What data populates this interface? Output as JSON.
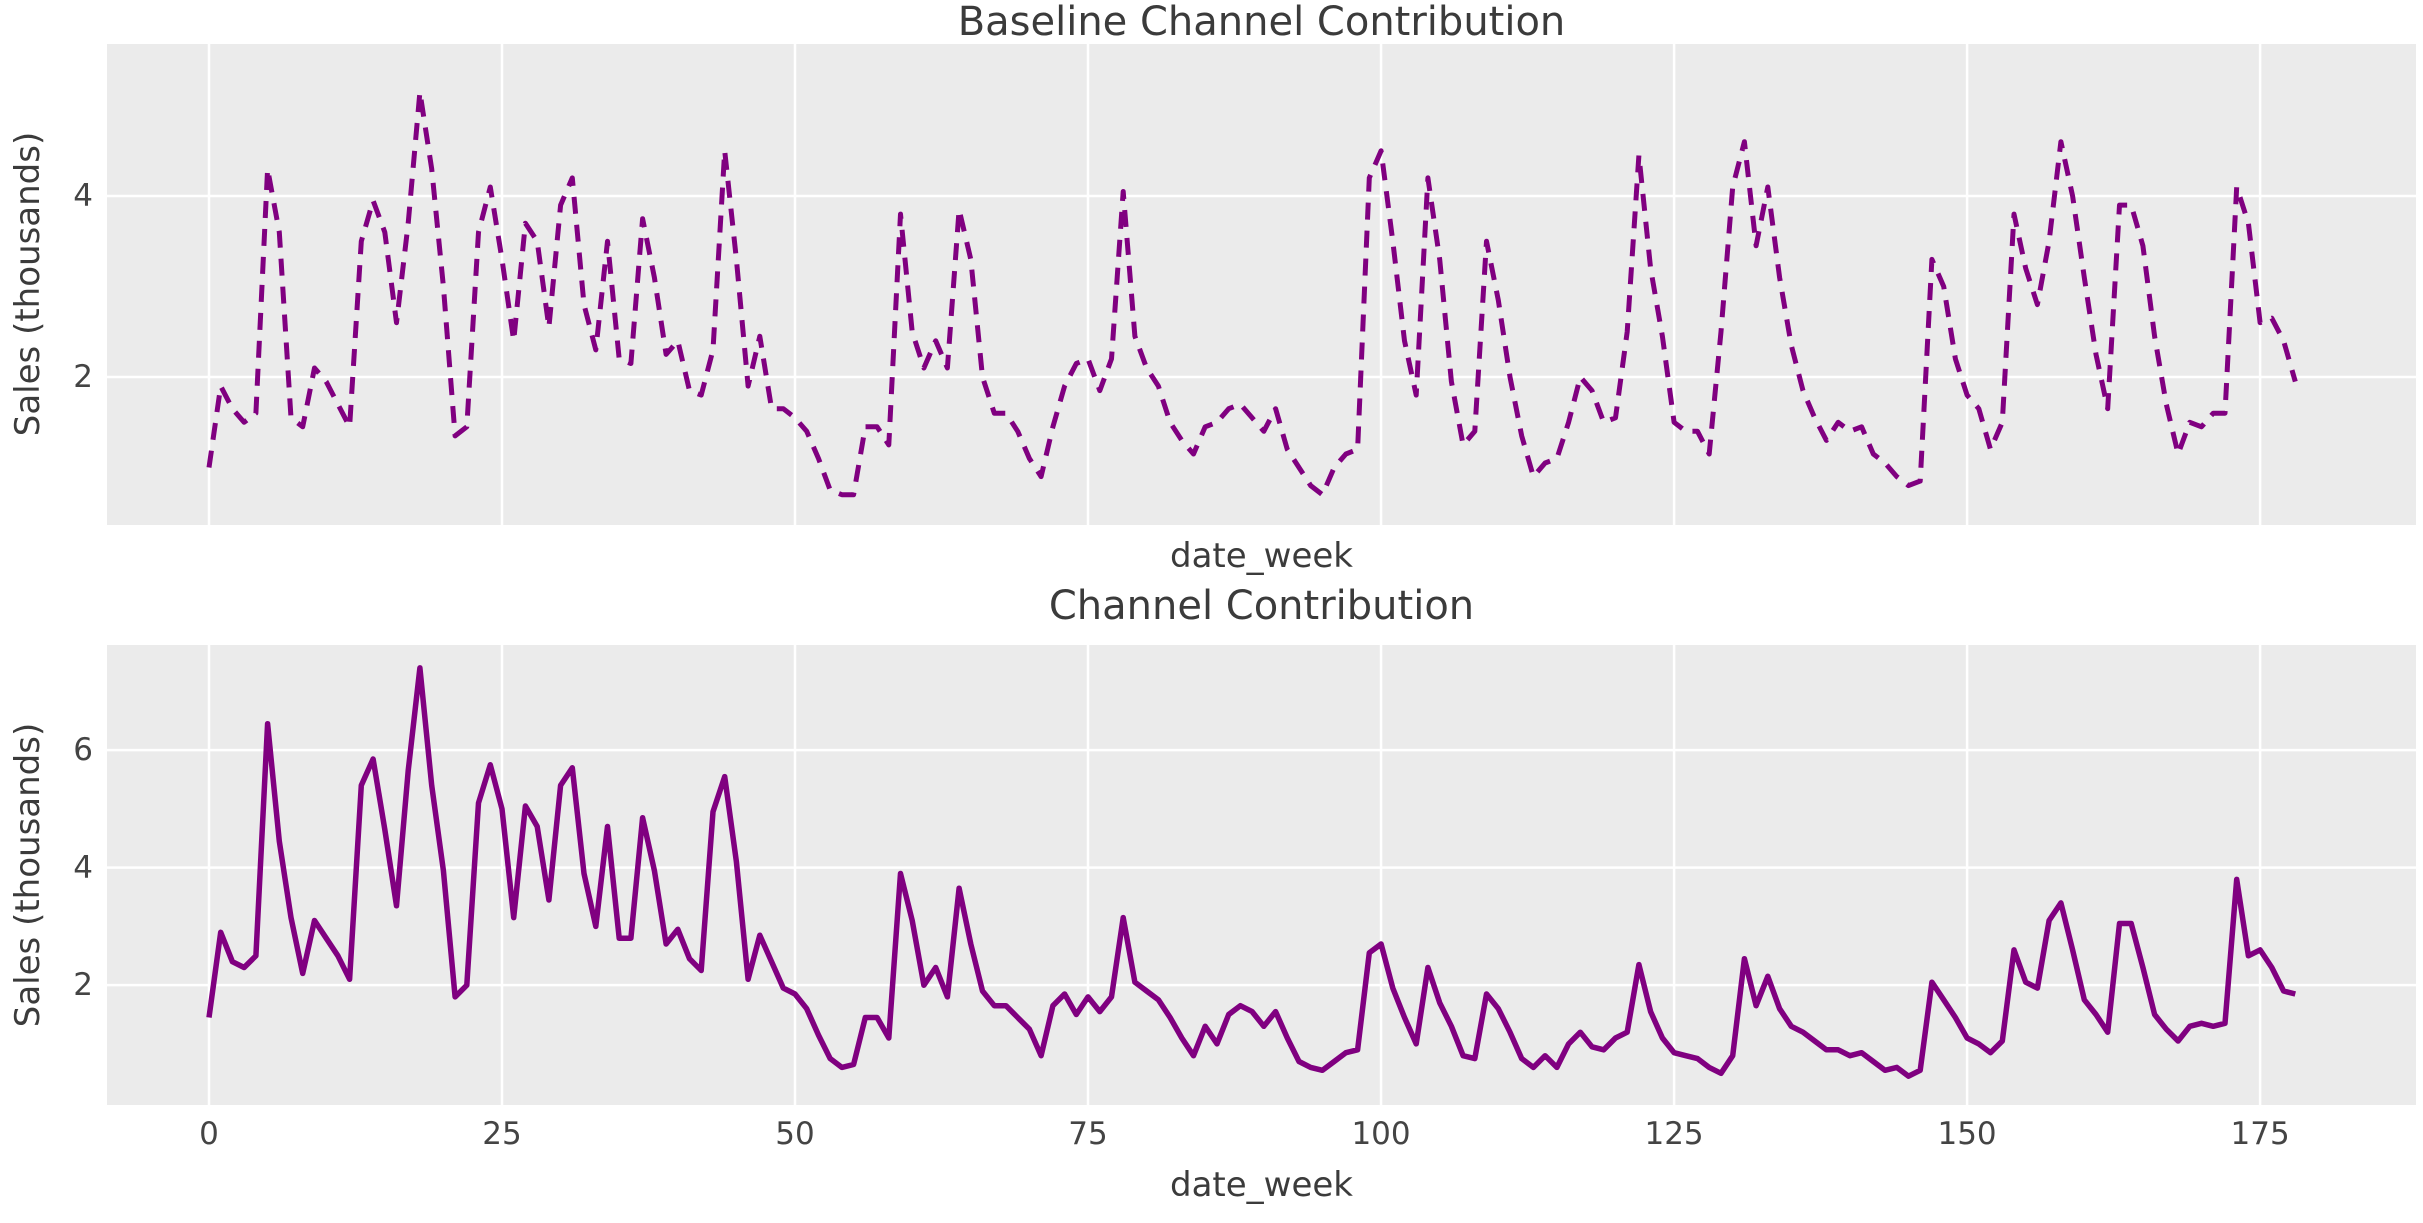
{
  "figure": {
    "background_color": "#ffffff",
    "panel_color": "#ebebeb",
    "grid_color": "#ffffff",
    "text_color": "#3b3b3b",
    "accent_color": "#800080"
  },
  "chart_data": [
    {
      "type": "line",
      "title": "Baseline Channel Contribution",
      "xlabel": "date_week",
      "ylabel": "Sales (thousands)",
      "legend": null,
      "grid": true,
      "line_style": "dashed",
      "line_color": "#800080",
      "line_width": 5,
      "x_start": 0,
      "x_step": 1,
      "x_ticks": [
        0,
        25,
        50,
        75,
        100,
        125,
        150,
        175
      ],
      "x_tick_labels_visible": false,
      "y_ticks": [
        2,
        4
      ],
      "xlim": [
        -8.7,
        188.3
      ],
      "ylim": [
        0.365,
        5.68
      ],
      "values": [
        1.0,
        1.9,
        1.65,
        1.5,
        1.6,
        4.3,
        3.6,
        1.55,
        1.45,
        2.1,
        1.95,
        1.7,
        1.45,
        3.5,
        3.95,
        3.6,
        2.6,
        3.7,
        5.15,
        4.3,
        3.0,
        1.35,
        1.45,
        3.6,
        4.1,
        3.3,
        2.4,
        3.7,
        3.5,
        2.55,
        3.9,
        4.2,
        2.8,
        2.3,
        3.5,
        2.2,
        2.15,
        3.75,
        3.1,
        2.25,
        2.4,
        1.85,
        1.8,
        2.3,
        4.5,
        3.3,
        1.9,
        2.45,
        1.65,
        1.65,
        1.55,
        1.4,
        1.1,
        0.75,
        0.7,
        0.7,
        1.45,
        1.45,
        1.25,
        3.8,
        2.5,
        2.1,
        2.4,
        2.1,
        3.85,
        3.3,
        2.0,
        1.6,
        1.6,
        1.4,
        1.1,
        0.9,
        1.45,
        1.9,
        2.15,
        2.2,
        1.85,
        2.2,
        4.05,
        2.45,
        2.1,
        1.9,
        1.5,
        1.3,
        1.15,
        1.45,
        1.5,
        1.65,
        1.7,
        1.55,
        1.4,
        1.65,
        1.2,
        1.0,
        0.8,
        0.7,
        1.0,
        1.15,
        1.2,
        4.2,
        4.5,
        3.5,
        2.4,
        1.8,
        4.2,
        3.3,
        1.95,
        1.25,
        1.4,
        3.5,
        2.85,
        2.0,
        1.35,
        0.9,
        1.05,
        1.1,
        1.5,
        2.0,
        1.85,
        1.5,
        1.55,
        2.5,
        4.45,
        3.2,
        2.45,
        1.5,
        1.4,
        1.4,
        1.15,
        2.5,
        4.1,
        4.6,
        3.45,
        4.1,
        3.1,
        2.35,
        1.85,
        1.55,
        1.3,
        1.5,
        1.4,
        1.45,
        1.15,
        1.05,
        0.9,
        0.8,
        0.85,
        3.3,
        3.0,
        2.2,
        1.8,
        1.65,
        1.2,
        1.5,
        3.8,
        3.2,
        2.8,
        3.5,
        4.6,
        4.0,
        3.1,
        2.25,
        1.65,
        3.9,
        3.9,
        3.45,
        2.45,
        1.7,
        1.15,
        1.5,
        1.45,
        1.6,
        1.6,
        4.1,
        3.7,
        2.6,
        2.65,
        2.4,
        1.95
      ]
    },
    {
      "type": "line",
      "title": "Channel Contribution",
      "xlabel": "date_week",
      "ylabel": "Sales (thousands)",
      "legend": null,
      "grid": true,
      "line_style": "solid",
      "line_color": "#800080",
      "line_width": 5.5,
      "x_start": 0,
      "x_step": 1,
      "x_ticks": [
        0,
        25,
        50,
        75,
        100,
        125,
        150,
        175
      ],
      "x_tick_labels_visible": true,
      "y_ticks": [
        2,
        4,
        6
      ],
      "xlim": [
        -8.7,
        188.3
      ],
      "ylim": [
        -0.04,
        7.79
      ],
      "values": [
        1.45,
        2.9,
        2.4,
        2.3,
        2.5,
        6.45,
        4.45,
        3.15,
        2.2,
        3.1,
        2.8,
        2.5,
        2.1,
        5.4,
        5.85,
        4.65,
        3.35,
        5.65,
        7.4,
        5.4,
        3.95,
        1.8,
        2.0,
        5.1,
        5.75,
        5.0,
        3.15,
        5.05,
        4.7,
        3.45,
        5.4,
        5.7,
        3.9,
        3.0,
        4.7,
        2.8,
        2.8,
        4.85,
        3.95,
        2.7,
        2.95,
        2.45,
        2.25,
        4.95,
        5.55,
        4.1,
        2.1,
        2.85,
        2.4,
        1.95,
        1.85,
        1.6,
        1.15,
        0.75,
        0.6,
        0.65,
        1.45,
        1.45,
        1.1,
        3.9,
        3.1,
        2.0,
        2.3,
        1.8,
        3.65,
        2.7,
        1.9,
        1.65,
        1.65,
        1.45,
        1.25,
        0.8,
        1.65,
        1.85,
        1.5,
        1.8,
        1.55,
        1.8,
        3.15,
        2.05,
        1.9,
        1.75,
        1.45,
        1.1,
        0.8,
        1.3,
        1.0,
        1.5,
        1.65,
        1.55,
        1.3,
        1.55,
        1.1,
        0.7,
        0.6,
        0.55,
        0.7,
        0.85,
        0.9,
        2.55,
        2.7,
        1.95,
        1.45,
        1.0,
        2.3,
        1.7,
        1.3,
        0.8,
        0.75,
        1.85,
        1.6,
        1.2,
        0.75,
        0.6,
        0.8,
        0.6,
        1.0,
        1.2,
        0.95,
        0.9,
        1.1,
        1.2,
        2.35,
        1.55,
        1.1,
        0.85,
        0.8,
        0.75,
        0.6,
        0.5,
        0.8,
        2.45,
        1.65,
        2.15,
        1.6,
        1.3,
        1.2,
        1.05,
        0.9,
        0.9,
        0.8,
        0.85,
        0.7,
        0.55,
        0.6,
        0.45,
        0.55,
        2.05,
        1.75,
        1.45,
        1.1,
        1.0,
        0.85,
        1.05,
        2.6,
        2.05,
        1.95,
        3.1,
        3.4,
        2.6,
        1.75,
        1.5,
        1.2,
        3.05,
        3.05,
        2.3,
        1.5,
        1.25,
        1.05,
        1.3,
        1.35,
        1.3,
        1.35,
        3.8,
        2.5,
        2.6,
        2.3,
        1.9,
        1.85
      ]
    }
  ]
}
